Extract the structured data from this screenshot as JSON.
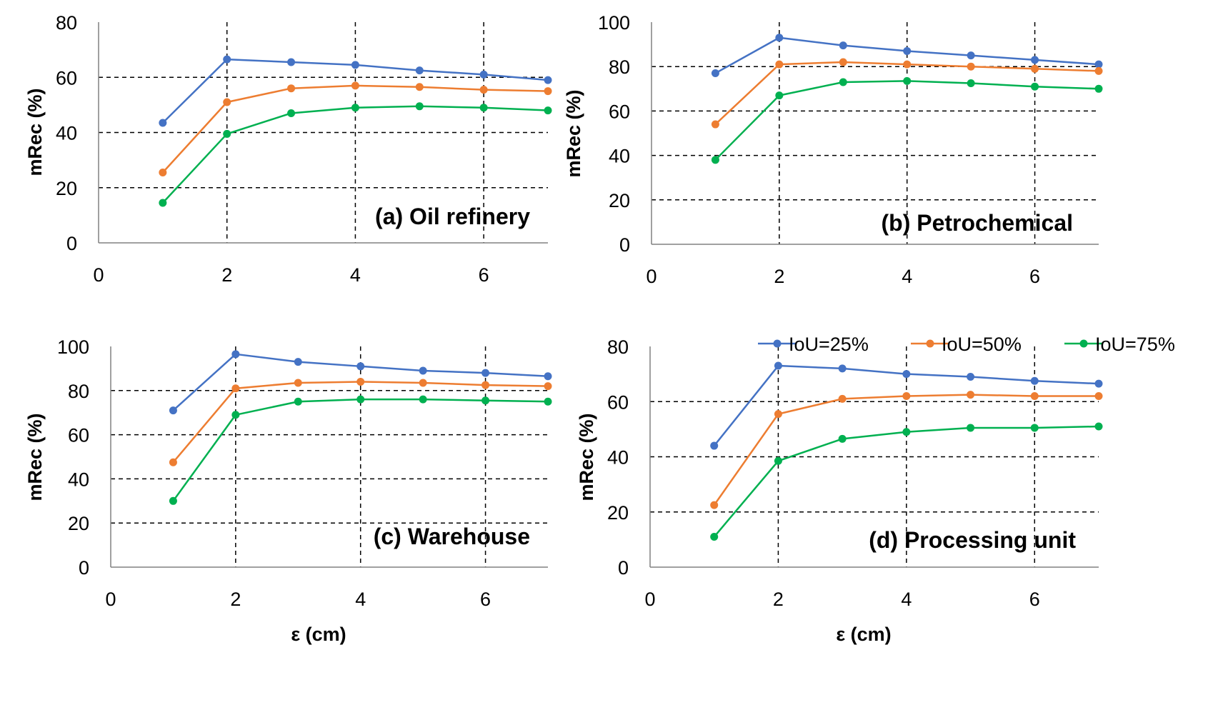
{
  "legend": [
    {
      "name": "IoU=25%",
      "color": "#4472C4"
    },
    {
      "name": "IoU=50%",
      "color": "#ED7D31"
    },
    {
      "name": "IoU=75%",
      "color": "#00B050"
    }
  ],
  "chart_data": [
    {
      "type": "line",
      "title": "(a) Oil refinery",
      "xlabel": "",
      "ylabel": "mRec (%)",
      "xlim": [
        0,
        7
      ],
      "ylim": [
        0,
        80
      ],
      "xticks": [
        "0",
        "2",
        "4",
        "6"
      ],
      "yticks": [
        "0",
        "20",
        "40",
        "60",
        "80"
      ],
      "grid": true,
      "x": [
        1,
        2,
        3,
        4,
        5,
        6,
        7
      ],
      "series": [
        {
          "name": "IoU=25%",
          "values": [
            43.5,
            66.5,
            65.5,
            64.5,
            62.5,
            61,
            59
          ]
        },
        {
          "name": "IoU=50%",
          "values": [
            25.5,
            51,
            56,
            57,
            56.5,
            55.5,
            55
          ]
        },
        {
          "name": "IoU=75%",
          "values": [
            14.5,
            39.5,
            47,
            49,
            49.5,
            49,
            48
          ]
        }
      ]
    },
    {
      "type": "line",
      "title": "(b) Petrochemical",
      "xlabel": "",
      "ylabel": "mRec (%)",
      "xlim": [
        0,
        7
      ],
      "ylim": [
        0,
        100
      ],
      "xticks": [
        "0",
        "2",
        "4",
        "6"
      ],
      "yticks": [
        "0",
        "20",
        "40",
        "60",
        "80",
        "100"
      ],
      "grid": true,
      "x": [
        1,
        2,
        3,
        4,
        5,
        6,
        7
      ],
      "series": [
        {
          "name": "IoU=25%",
          "values": [
            77,
            93,
            89.5,
            87,
            85,
            83,
            81
          ]
        },
        {
          "name": "IoU=50%",
          "values": [
            54,
            81,
            82,
            81,
            80,
            79,
            78
          ]
        },
        {
          "name": "IoU=75%",
          "values": [
            38,
            67,
            73,
            73.5,
            72.5,
            71,
            70
          ]
        }
      ]
    },
    {
      "type": "line",
      "title": "(c) Warehouse",
      "xlabel": "ε (cm)",
      "ylabel": "mRec (%)",
      "xlim": [
        0,
        7
      ],
      "ylim": [
        0,
        100
      ],
      "xticks": [
        "0",
        "2",
        "4",
        "6"
      ],
      "yticks": [
        "0",
        "20",
        "40",
        "60",
        "80",
        "100"
      ],
      "grid": true,
      "x": [
        1,
        2,
        3,
        4,
        5,
        6,
        7
      ],
      "series": [
        {
          "name": "IoU=25%",
          "values": [
            71,
            96.5,
            93,
            91,
            89,
            88,
            86.5
          ]
        },
        {
          "name": "IoU=50%",
          "values": [
            47.5,
            81,
            83.5,
            84,
            83.5,
            82.5,
            82
          ]
        },
        {
          "name": "IoU=75%",
          "values": [
            30,
            69,
            75,
            76,
            76,
            75.5,
            75
          ]
        }
      ]
    },
    {
      "type": "line",
      "title": "(d) Processing unit",
      "xlabel": "ε (cm)",
      "ylabel": "mRec (%)",
      "xlim": [
        0,
        7
      ],
      "ylim": [
        0,
        80
      ],
      "xticks": [
        "0",
        "2",
        "4",
        "6"
      ],
      "yticks": [
        "0",
        "20",
        "40",
        "60",
        "80"
      ],
      "grid": true,
      "x": [
        1,
        2,
        3,
        4,
        5,
        6,
        7
      ],
      "series": [
        {
          "name": "IoU=25%",
          "values": [
            44,
            73,
            72,
            70,
            69,
            67.5,
            66.5
          ]
        },
        {
          "name": "IoU=50%",
          "values": [
            22.5,
            55.5,
            61,
            62,
            62.5,
            62,
            62
          ]
        },
        {
          "name": "IoU=75%",
          "values": [
            11,
            38.5,
            46.5,
            49,
            50.5,
            50.5,
            51
          ]
        }
      ]
    }
  ]
}
